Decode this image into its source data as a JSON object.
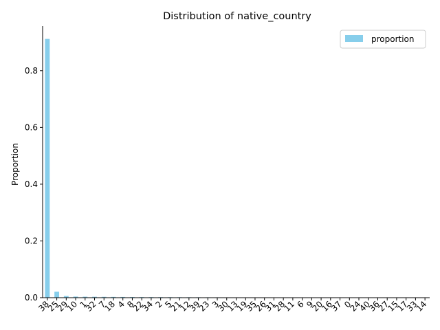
{
  "chart_data": {
    "type": "bar",
    "title": "Distribution of native_country",
    "xlabel": "",
    "ylabel": "Proportion",
    "ylim": [
      0,
      0.957
    ],
    "yticks": [
      0.0,
      0.2,
      0.4,
      0.6,
      0.8
    ],
    "ytick_labels": [
      "0.0",
      "0.2",
      "0.4",
      "0.6",
      "0.8"
    ],
    "grid": false,
    "legend": {
      "placement": "top-right",
      "entries": [
        "proportion"
      ]
    },
    "colors": {
      "bar": "#87ceeb",
      "axis": "#000000"
    },
    "categories": [
      "38",
      "25",
      "29",
      "10",
      "1",
      "32",
      "7",
      "18",
      "4",
      "8",
      "22",
      "34",
      "2",
      "5",
      "21",
      "12",
      "39",
      "23",
      "3",
      "30",
      "13",
      "19",
      "35",
      "26",
      "31",
      "28",
      "11",
      "6",
      "9",
      "20",
      "16",
      "37",
      "0",
      "24",
      "40",
      "36",
      "27",
      "15",
      "17",
      "33",
      "14"
    ],
    "series": [
      {
        "name": "proportion",
        "values": [
          0.912,
          0.021,
          0.006,
          0.004,
          0.0035,
          0.0033,
          0.003,
          0.0028,
          0.0026,
          0.0023,
          0.0021,
          0.002,
          0.0019,
          0.0018,
          0.0017,
          0.0016,
          0.0015,
          0.0014,
          0.0013,
          0.0012,
          0.0011,
          0.0011,
          0.001,
          0.001,
          0.0009,
          0.0009,
          0.0008,
          0.0008,
          0.0007,
          0.0007,
          0.0006,
          0.0005,
          0.0004,
          0.0004,
          0.0003,
          0.0003,
          0.0003,
          0.0002,
          0.0002,
          0.0001,
          0.0001
        ]
      }
    ]
  }
}
